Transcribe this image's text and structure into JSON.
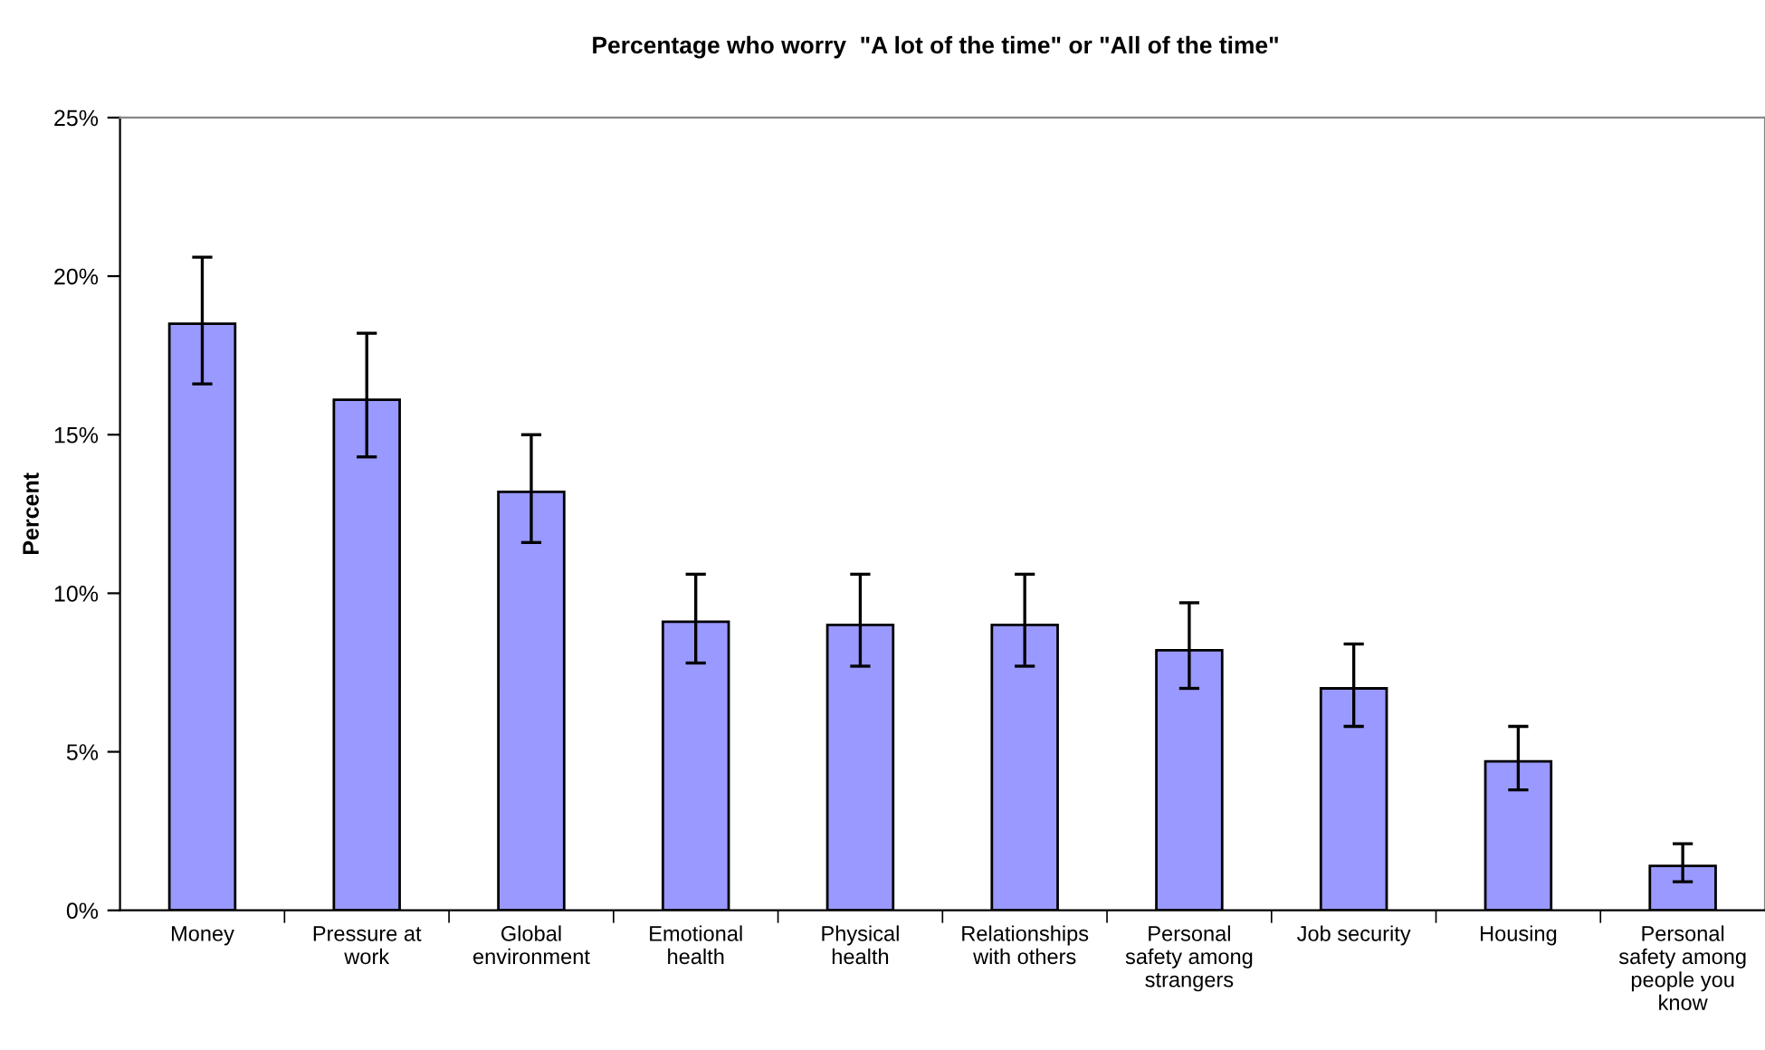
{
  "chart_data": {
    "type": "bar",
    "title": "Percentage who worry  \"A lot of the time\" or \"All of the time\"",
    "ylabel": "Percent",
    "categories": [
      "Money",
      "Pressure at\nwork",
      "Global\nenvironment",
      "Emotional\nhealth",
      "Physical\nhealth",
      "Relationships\nwith others",
      "Personal\nsafety among\nstrangers",
      "Job security",
      "Housing",
      "Personal\nsafety among\npeople you\nknow"
    ],
    "values": [
      18.5,
      16.1,
      13.2,
      9.1,
      9.0,
      9.0,
      8.2,
      7.0,
      4.7,
      1.4
    ],
    "errors": [
      [
        16.6,
        20.6
      ],
      [
        14.3,
        18.2
      ],
      [
        11.6,
        15.0
      ],
      [
        7.8,
        10.6
      ],
      [
        7.7,
        10.6
      ],
      [
        7.7,
        10.6
      ],
      [
        7.0,
        9.7
      ],
      [
        5.8,
        8.4
      ],
      [
        3.8,
        5.8
      ],
      [
        0.9,
        2.1
      ]
    ],
    "color": "#9999ff",
    "ylim": [
      0,
      25
    ],
    "yticks": [
      {
        "value": 0,
        "label": "0%"
      },
      {
        "value": 5,
        "label": "5%"
      },
      {
        "value": 10,
        "label": "10%"
      },
      {
        "value": 15,
        "label": "15%"
      },
      {
        "value": 20,
        "label": "20%"
      },
      {
        "value": 25,
        "label": "25%"
      }
    ],
    "grid": false,
    "legend": false
  }
}
